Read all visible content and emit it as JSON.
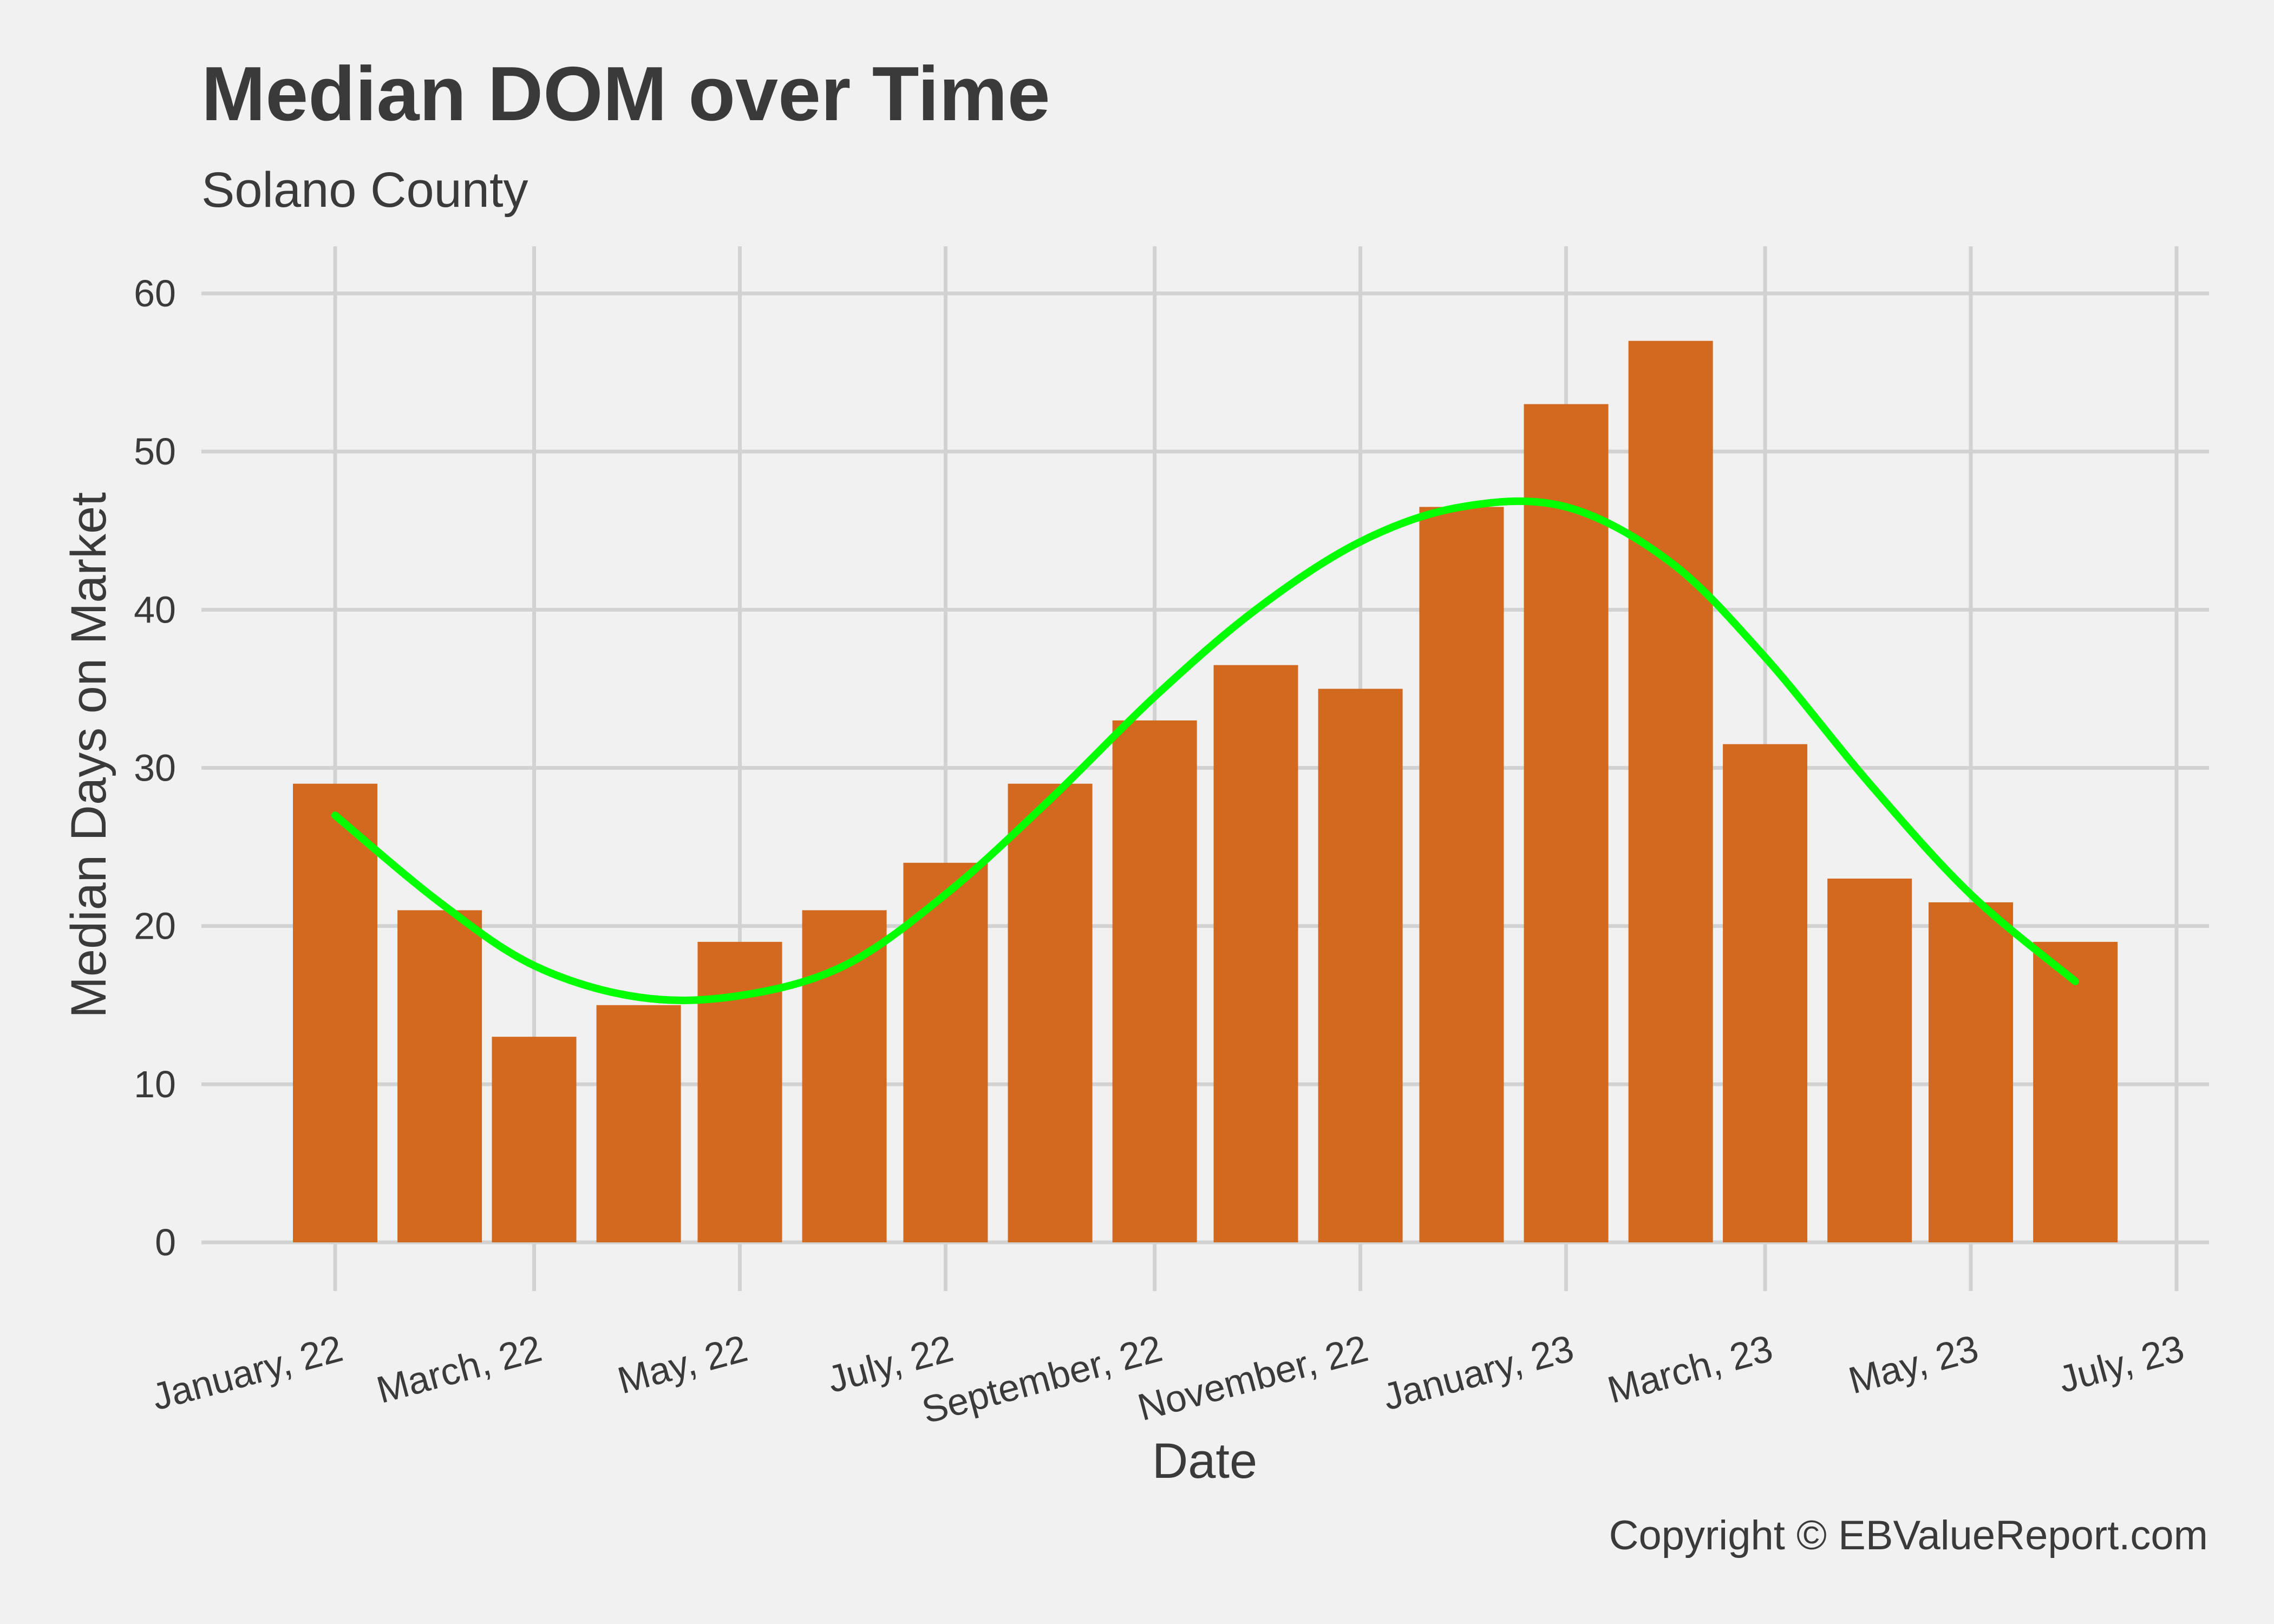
{
  "chart_data": {
    "type": "bar",
    "title": "Median DOM over Time",
    "subtitle": "Solano County",
    "xlabel": "Date",
    "ylabel": "Median Days on Market",
    "caption": "Copyright  © EBValueReport.com",
    "ylim": [
      0,
      60
    ],
    "y_ticks": [
      0,
      10,
      20,
      30,
      40,
      50,
      60
    ],
    "x_ticks": [
      {
        "label": "January, 22",
        "date": "2022-01-01"
      },
      {
        "label": "March, 22",
        "date": "2022-03-01"
      },
      {
        "label": "May, 22",
        "date": "2022-05-01"
      },
      {
        "label": "July, 22",
        "date": "2022-07-01"
      },
      {
        "label": "September, 22",
        "date": "2022-09-01"
      },
      {
        "label": "November, 22",
        "date": "2022-11-01"
      },
      {
        "label": "January, 23",
        "date": "2023-01-01"
      },
      {
        "label": "March, 23",
        "date": "2023-03-01"
      },
      {
        "label": "May, 23",
        "date": "2023-05-01"
      },
      {
        "label": "July, 23",
        "date": "2023-07-01"
      }
    ],
    "grid": true,
    "bars": [
      {
        "date": "2022-01-01",
        "value": 29
      },
      {
        "date": "2022-02-01",
        "value": 21
      },
      {
        "date": "2022-03-01",
        "value": 13
      },
      {
        "date": "2022-04-01",
        "value": 15
      },
      {
        "date": "2022-05-01",
        "value": 19
      },
      {
        "date": "2022-06-01",
        "value": 21
      },
      {
        "date": "2022-07-01",
        "value": 24
      },
      {
        "date": "2022-08-01",
        "value": 29
      },
      {
        "date": "2022-09-01",
        "value": 33
      },
      {
        "date": "2022-10-01",
        "value": 36.5
      },
      {
        "date": "2022-11-01",
        "value": 35
      },
      {
        "date": "2022-12-01",
        "value": 46.5
      },
      {
        "date": "2023-01-01",
        "value": 53
      },
      {
        "date": "2023-02-01",
        "value": 57
      },
      {
        "date": "2023-03-01",
        "value": 31.5
      },
      {
        "date": "2023-04-01",
        "value": 23
      },
      {
        "date": "2023-05-01",
        "value": 21.5
      },
      {
        "date": "2023-06-01",
        "value": 19
      }
    ],
    "trend": [
      {
        "date": "2022-01-01",
        "value": 27.0
      },
      {
        "date": "2022-02-01",
        "value": 21.5
      },
      {
        "date": "2022-03-01",
        "value": 17.5
      },
      {
        "date": "2022-04-01",
        "value": 15.5
      },
      {
        "date": "2022-05-01",
        "value": 15.6
      },
      {
        "date": "2022-06-01",
        "value": 17.5
      },
      {
        "date": "2022-07-01",
        "value": 22.0
      },
      {
        "date": "2022-08-01",
        "value": 28.0
      },
      {
        "date": "2022-09-01",
        "value": 34.5
      },
      {
        "date": "2022-10-01",
        "value": 40.0
      },
      {
        "date": "2022-11-01",
        "value": 44.3
      },
      {
        "date": "2022-12-01",
        "value": 46.5
      },
      {
        "date": "2023-01-01",
        "value": 46.5
      },
      {
        "date": "2023-02-01",
        "value": 43.0
      },
      {
        "date": "2023-03-01",
        "value": 37.0
      },
      {
        "date": "2023-04-01",
        "value": 29.0
      },
      {
        "date": "2023-05-01",
        "value": 22.0
      },
      {
        "date": "2023-06-01",
        "value": 16.5
      }
    ],
    "colors": {
      "background": "#f1f1f1",
      "bar": "#d2691e",
      "trend": "#00ff00",
      "grid": "#d2d2d2",
      "text": "#3a3a3a"
    }
  }
}
